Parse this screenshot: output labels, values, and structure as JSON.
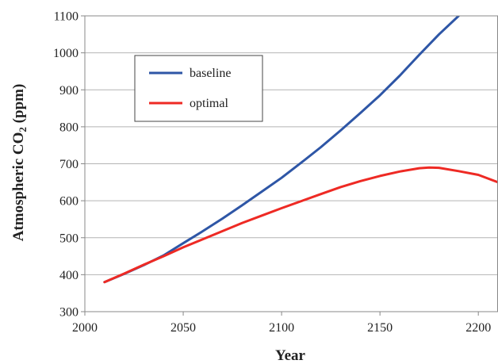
{
  "chart_data": {
    "type": "line",
    "xlabel": "Year",
    "ylabel": {
      "main": "Atmospheric CO",
      "subscript": "2",
      "suffix": " (ppm)"
    },
    "xlim": [
      2000,
      2210
    ],
    "ylim": [
      300,
      1100
    ],
    "xticks": [
      2000,
      2050,
      2100,
      2150,
      2200
    ],
    "yticks": [
      300,
      400,
      500,
      600,
      700,
      800,
      900,
      1000,
      1100
    ],
    "grid": "horizontal",
    "legend_position": "upper-left",
    "series": [
      {
        "name": "baseline",
        "color": "#2e56a6",
        "x": [
          2010,
          2020,
          2030,
          2040,
          2050,
          2060,
          2070,
          2080,
          2090,
          2100,
          2110,
          2120,
          2130,
          2140,
          2150,
          2160,
          2170,
          2180,
          2190
        ],
        "y": [
          380,
          402,
          426,
          452,
          485,
          518,
          552,
          588,
          625,
          662,
          703,
          745,
          790,
          837,
          885,
          938,
          995,
          1050,
          1100
        ]
      },
      {
        "name": "optimal",
        "color": "#ee2a24",
        "x": [
          2010,
          2020,
          2030,
          2040,
          2050,
          2060,
          2070,
          2080,
          2090,
          2100,
          2110,
          2120,
          2130,
          2140,
          2150,
          2160,
          2170,
          2175,
          2180,
          2190,
          2200,
          2210
        ],
        "y": [
          380,
          403,
          427,
          450,
          474,
          496,
          518,
          540,
          560,
          580,
          599,
          618,
          637,
          653,
          667,
          679,
          688,
          690,
          689,
          680,
          670,
          650
        ]
      }
    ]
  }
}
